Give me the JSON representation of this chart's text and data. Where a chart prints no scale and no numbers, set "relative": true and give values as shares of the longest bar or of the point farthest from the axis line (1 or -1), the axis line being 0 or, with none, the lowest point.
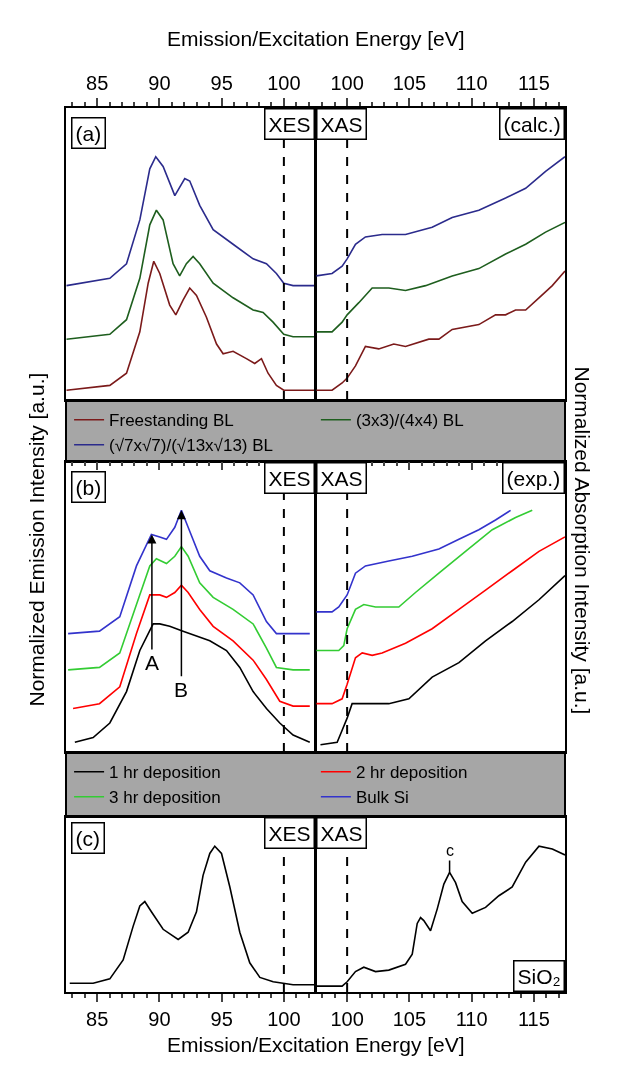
{
  "chart_data": [
    {
      "type": "line",
      "relative": true,
      "xlim": [
        82.5,
        102.5
      ],
      "xticks": [
        85,
        90,
        95,
        100
      ],
      "tick_labels": "x",
      "xlabel": "Emission/Excitation Energy [eV]",
      "legend": "bottom",
      "annotations": [
        "(a)",
        "XES"
      ],
      "ref_lines": [
        {
          "axis": "x",
          "value": 100,
          "color": "#000000",
          "line_style": "dashed"
        }
      ],
      "series": [
        {
          "name": "Freestanding BL",
          "color": "#7b1a1a",
          "x": [
            82.54,
            86.02,
            87.36,
            88.43,
            89.1,
            89.55,
            90.03,
            90.83,
            91.32,
            91.9,
            92.44,
            92.98,
            93.78,
            94.59,
            95.12,
            95.92,
            96.99,
            97.66,
            98.2,
            98.73,
            99.4,
            99.99,
            102.48
          ],
          "values": [
            0.04,
            0.06,
            0.11,
            0.28,
            0.48,
            0.57,
            0.52,
            0.39,
            0.35,
            0.41,
            0.46,
            0.43,
            0.34,
            0.23,
            0.19,
            0.2,
            0.17,
            0.15,
            0.17,
            0.11,
            0.06,
            0.04,
            0.04
          ]
        },
        {
          "name": "(3x3)/(4x4) BL",
          "color": "#1e5e1e",
          "x": [
            82.54,
            86.02,
            87.36,
            88.43,
            89.23,
            89.76,
            90.3,
            91.1,
            91.63,
            92.17,
            92.71,
            93.24,
            94.32,
            95.92,
            97.53,
            98.33,
            99.13,
            99.99,
            100.74,
            102.48
          ],
          "values": [
            0.25,
            0.27,
            0.33,
            0.5,
            0.72,
            0.78,
            0.74,
            0.56,
            0.51,
            0.56,
            0.59,
            0.56,
            0.48,
            0.42,
            0.37,
            0.36,
            0.32,
            0.27,
            0.26,
            0.26
          ]
        },
        {
          "name": "(√7x√7)/(√13x√13) BL",
          "color": "#2b2b8c",
          "x": [
            82.54,
            86.02,
            87.36,
            88.43,
            89.23,
            89.71,
            90.3,
            91.24,
            92.04,
            92.44,
            93.24,
            94.32,
            95.92,
            97.53,
            98.6,
            99.4,
            99.99,
            100.74,
            102.48
          ],
          "values": [
            0.47,
            0.5,
            0.56,
            0.74,
            0.95,
            1.0,
            0.96,
            0.84,
            0.91,
            0.9,
            0.8,
            0.7,
            0.64,
            0.58,
            0.56,
            0.52,
            0.48,
            0.47,
            0.47
          ]
        }
      ]
    },
    {
      "type": "line",
      "relative": true,
      "xlim": [
        97.5,
        117.5
      ],
      "xticks": [
        100,
        105,
        110,
        115
      ],
      "tick_labels": "x",
      "annotations": [
        "XAS",
        "(calc.)"
      ],
      "ref_lines": [
        {
          "axis": "x",
          "value": 100,
          "color": "#000000",
          "line_style": "dashed"
        }
      ],
      "series": [
        {
          "color": "#7b1a1a",
          "x": [
            97.53,
            98.79,
            99.6,
            100,
            100.67,
            101.47,
            102.54,
            103.75,
            104.69,
            106.56,
            107.37,
            108.44,
            110.58,
            111.92,
            112.73,
            113.53,
            114.34,
            115.41,
            116.48,
            117.5
          ],
          "values": [
            0.04,
            0.04,
            0.07,
            0.09,
            0.14,
            0.22,
            0.21,
            0.23,
            0.22,
            0.25,
            0.25,
            0.29,
            0.31,
            0.35,
            0.35,
            0.37,
            0.37,
            0.42,
            0.47,
            0.53
          ]
        },
        {
          "color": "#1e5e1e",
          "x": [
            97.53,
            98.79,
            99.6,
            100,
            100.94,
            102.01,
            103.35,
            104.69,
            106.3,
            108.44,
            110.58,
            112.73,
            114.34,
            115.94,
            117.5
          ],
          "values": [
            0.28,
            0.28,
            0.32,
            0.35,
            0.4,
            0.46,
            0.46,
            0.45,
            0.47,
            0.51,
            0.54,
            0.6,
            0.64,
            0.69,
            0.73
          ]
        },
        {
          "color": "#2b2b8c",
          "x": [
            97.53,
            98.79,
            99.6,
            100,
            100.67,
            101.47,
            102.81,
            104.69,
            106.83,
            108.44,
            110.58,
            112.73,
            114.34,
            115.94,
            117.5
          ],
          "values": [
            0.51,
            0.52,
            0.55,
            0.58,
            0.64,
            0.67,
            0.68,
            0.68,
            0.71,
            0.75,
            0.78,
            0.83,
            0.87,
            0.94,
            1.0
          ]
        }
      ]
    },
    {
      "type": "line",
      "relative": true,
      "xlim": [
        82.5,
        102.5
      ],
      "xticks": [
        85,
        90,
        95,
        100
      ],
      "tick_labels": false,
      "ylabel": "Normalized Emission Intensity [a.u.]",
      "legend": "bottom",
      "annotations": [
        "(b)",
        "XES",
        {
          "text": "A",
          "x": 89.4,
          "y": 0.9
        },
        {
          "text": "B",
          "x": 91.77,
          "y": 1.0
        }
      ],
      "ref_lines": [
        {
          "axis": "x",
          "value": 100,
          "color": "#000000",
          "line_style": "dashed"
        }
      ],
      "series": [
        {
          "name": "1 hr deposition",
          "color": "#000000",
          "x": [
            83.21,
            84.68,
            86.02,
            87.36,
            88.43,
            89.5,
            90.03,
            90.83,
            91.9,
            92.98,
            94.05,
            95.39,
            96.46,
            97.53,
            98.6,
            99.67,
            100.74,
            102.08
          ],
          "values": [
            0.04,
            0.06,
            0.12,
            0.25,
            0.42,
            0.53,
            0.53,
            0.52,
            0.5,
            0.48,
            0.46,
            0.42,
            0.35,
            0.25,
            0.18,
            0.12,
            0.07,
            0.04
          ]
        },
        {
          "name": "2 hr deposition",
          "color": "#ff0000",
          "x": [
            83.07,
            85.19,
            86.82,
            88.16,
            89.23,
            90.03,
            90.57,
            91.24,
            91.77,
            92.31,
            93.24,
            94.32,
            95.92,
            97.53,
            98.6,
            99.67,
            100.74,
            102.08
          ],
          "values": [
            0.18,
            0.2,
            0.27,
            0.49,
            0.65,
            0.65,
            0.64,
            0.66,
            0.69,
            0.66,
            0.59,
            0.52,
            0.46,
            0.38,
            0.3,
            0.21,
            0.19,
            0.19
          ]
        },
        {
          "name": "3 hr deposition",
          "color": "#33cc33",
          "x": [
            82.67,
            85.19,
            86.82,
            88.16,
            89.23,
            89.76,
            90.57,
            91.24,
            91.77,
            92.31,
            93.24,
            94.32,
            95.92,
            97.53,
            98.6,
            99.4,
            100.74,
            102.08
          ],
          "values": [
            0.34,
            0.35,
            0.41,
            0.61,
            0.77,
            0.8,
            0.78,
            0.81,
            0.85,
            0.81,
            0.7,
            0.64,
            0.59,
            0.53,
            0.43,
            0.35,
            0.34,
            0.34
          ]
        },
        {
          "name": "Bulk Si",
          "color": "#3333cc",
          "x": [
            82.67,
            85.19,
            86.82,
            88.16,
            89.36,
            90.03,
            90.57,
            91.24,
            91.77,
            92.31,
            93.24,
            94.05,
            95.39,
            96.46,
            97.53,
            98.6,
            99.4,
            100.74,
            102.08
          ],
          "values": [
            0.49,
            0.5,
            0.56,
            0.77,
            0.9,
            0.89,
            0.88,
            0.93,
            1.0,
            0.93,
            0.81,
            0.75,
            0.72,
            0.7,
            0.65,
            0.54,
            0.49,
            0.49,
            0.49
          ]
        }
      ]
    },
    {
      "type": "line",
      "relative": true,
      "xlim": [
        97.5,
        117.5
      ],
      "xticks": [
        100,
        105,
        110,
        115
      ],
      "tick_labels": false,
      "ylabel": "Normalized Absorption Intensity [a.u.]",
      "annotations": [
        "XAS",
        "(exp.)"
      ],
      "ref_lines": [
        {
          "axis": "x",
          "value": 100,
          "color": "#000000",
          "line_style": "dashed"
        }
      ],
      "series": [
        {
          "color": "#000000",
          "x": [
            97.86,
            99.2,
            99.6,
            100,
            100.4,
            100.94,
            103.35,
            104.96,
            106.83,
            108.98,
            111.12,
            113.26,
            115.41,
            117.5
          ],
          "values": [
            0.03,
            0.04,
            0.09,
            0.14,
            0.2,
            0.2,
            0.2,
            0.22,
            0.31,
            0.37,
            0.46,
            0.54,
            0.63,
            0.73
          ]
        },
        {
          "color": "#ff0000",
          "x": [
            97.53,
            98.79,
            99.6,
            100,
            100.67,
            101.21,
            102.01,
            102.81,
            104.69,
            106.83,
            108.98,
            111.12,
            113.26,
            115.41,
            117.5
          ],
          "values": [
            0.2,
            0.2,
            0.22,
            0.28,
            0.39,
            0.41,
            0.4,
            0.41,
            0.45,
            0.51,
            0.59,
            0.67,
            0.75,
            0.83,
            0.89
          ]
        },
        {
          "color": "#33cc33",
          "x": [
            97.53,
            99.33,
            99.73,
            100,
            100.67,
            101.34,
            102.28,
            104.15,
            105.49,
            107.37,
            109.51,
            111.66,
            113.53,
            114.87
          ],
          "values": [
            0.42,
            0.42,
            0.44,
            0.51,
            0.59,
            0.61,
            0.6,
            0.6,
            0.66,
            0.74,
            0.83,
            0.92,
            0.97,
            1.0
          ]
        },
        {
          "color": "#3333cc",
          "x": [
            97.53,
            98.79,
            99.33,
            100,
            100.67,
            101.47,
            103.35,
            105.23,
            107.37,
            108.98,
            110.58,
            111.92,
            113.13
          ],
          "values": [
            0.58,
            0.58,
            0.6,
            0.65,
            0.74,
            0.77,
            0.79,
            0.81,
            0.84,
            0.88,
            0.92,
            0.96,
            1.0
          ]
        }
      ]
    },
    {
      "type": "line",
      "relative": true,
      "xlim": [
        82.5,
        102.5
      ],
      "xticks": [
        85,
        90,
        95,
        100
      ],
      "tick_labels": "x",
      "xlabel": "Emission/Excitation Energy [eV]",
      "annotations": [
        "(c)",
        "XES"
      ],
      "ref_lines": [
        {
          "axis": "x",
          "value": 100,
          "color": "#000000",
          "line_style": "dashed"
        }
      ],
      "series": [
        {
          "color": "#000000",
          "x": [
            82.8,
            84.68,
            86.02,
            87.09,
            87.89,
            88.43,
            88.83,
            89.36,
            90.3,
            91.51,
            92.31,
            92.98,
            93.51,
            94.05,
            94.45,
            94.99,
            95.66,
            96.46,
            97.26,
            98.07,
            99.14,
            100.74,
            102.48
          ],
          "values": [
            0.06,
            0.06,
            0.09,
            0.22,
            0.45,
            0.59,
            0.62,
            0.55,
            0.43,
            0.36,
            0.41,
            0.55,
            0.8,
            0.95,
            1.0,
            0.95,
            0.72,
            0.41,
            0.2,
            0.1,
            0.07,
            0.05,
            0.05
          ]
        }
      ]
    },
    {
      "type": "line",
      "relative": true,
      "xlim": [
        97.5,
        117.5
      ],
      "xticks": [
        100,
        105,
        110,
        115
      ],
      "tick_labels": "x",
      "annotations": [
        "XAS",
        "SiO₂",
        {
          "text": "c",
          "x": 108.23,
          "y": 0.82
        }
      ],
      "ref_lines": [
        {
          "axis": "x",
          "value": 100,
          "color": "#000000",
          "line_style": "dashed"
        }
      ],
      "series": [
        {
          "color": "#000000",
          "x": [
            97.53,
            99.6,
            100,
            100.67,
            101.34,
            102.28,
            103.35,
            104.69,
            105.23,
            105.63,
            105.9,
            106.16,
            106.7,
            107.24,
            107.77,
            108.23,
            108.71,
            109.24,
            110.05,
            111.12,
            112.19,
            113.26,
            114.34,
            115.41,
            116.48,
            117.5
          ],
          "values": [
            0.04,
            0.04,
            0.07,
            0.14,
            0.17,
            0.14,
            0.15,
            0.19,
            0.26,
            0.47,
            0.51,
            0.49,
            0.42,
            0.57,
            0.74,
            0.82,
            0.75,
            0.62,
            0.54,
            0.58,
            0.66,
            0.72,
            0.89,
            1.0,
            0.98,
            0.94
          ]
        }
      ]
    }
  ]
}
